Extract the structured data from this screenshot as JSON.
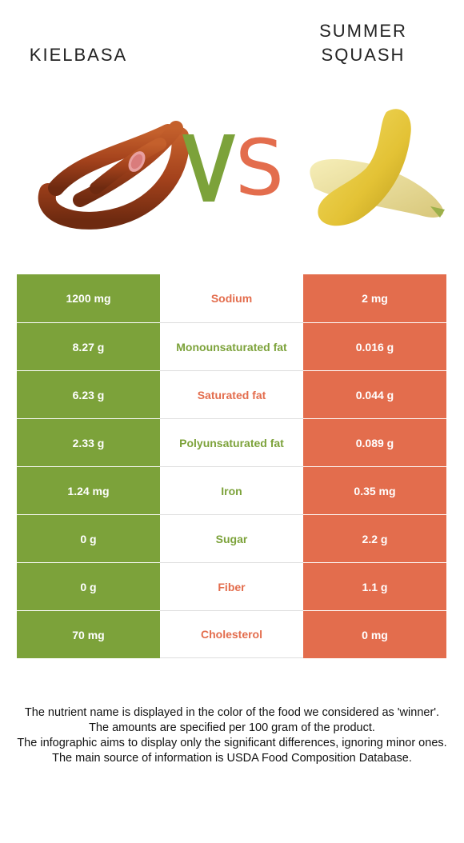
{
  "header": {
    "left_food": "KIELBASA",
    "right_food_line1": "SUMMER",
    "right_food_line2": "SQUASH",
    "vs_v": "V",
    "vs_s": "S"
  },
  "colors": {
    "left": "#7ca23a",
    "right": "#e36d4d"
  },
  "rows": [
    {
      "nutrient": "Sodium",
      "left": "1200 mg",
      "right": "2 mg",
      "winner": "right"
    },
    {
      "nutrient": "Monounsaturated fat",
      "left": "8.27 g",
      "right": "0.016 g",
      "winner": "left"
    },
    {
      "nutrient": "Saturated fat",
      "left": "6.23 g",
      "right": "0.044 g",
      "winner": "right"
    },
    {
      "nutrient": "Polyunsaturated fat",
      "left": "2.33 g",
      "right": "0.089 g",
      "winner": "left"
    },
    {
      "nutrient": "Iron",
      "left": "1.24 mg",
      "right": "0.35 mg",
      "winner": "left"
    },
    {
      "nutrient": "Sugar",
      "left": "0 g",
      "right": "2.2 g",
      "winner": "left"
    },
    {
      "nutrient": "Fiber",
      "left": "0 g",
      "right": "1.1 g",
      "winner": "right"
    },
    {
      "nutrient": "Cholesterol",
      "left": "70 mg",
      "right": "0 mg",
      "winner": "right"
    }
  ],
  "notes": {
    "line1": "The nutrient name is displayed in the color of the food we considered as 'winner'.",
    "line2": "The amounts are specified per 100 gram of the product.",
    "line3": "The infographic aims to display only the significant differences, ignoring minor ones.",
    "line4": "The main source of information is USDA Food Composition Database."
  }
}
